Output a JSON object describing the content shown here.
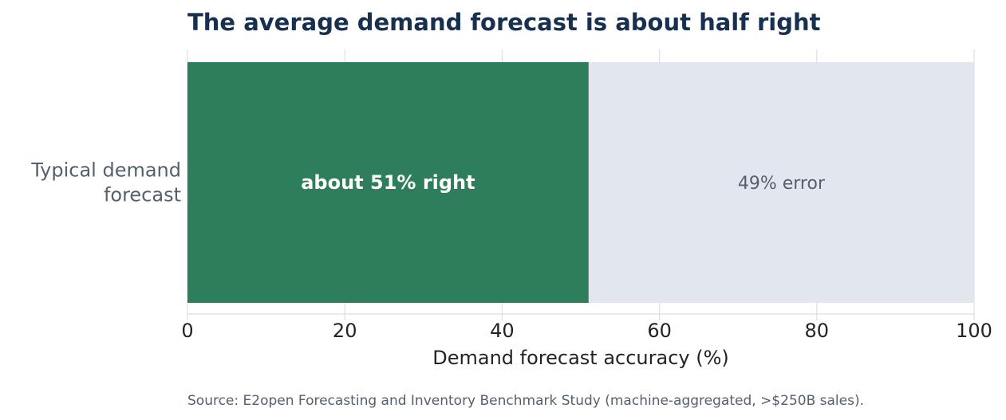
{
  "chart_data": {
    "type": "bar",
    "orientation": "horizontal",
    "stacked": true,
    "title": "The average demand forecast is about half right",
    "xlabel": "Demand forecast accuracy (%)",
    "ylabel": "",
    "categories": [
      "Typical demand\nforecast"
    ],
    "xlim": [
      0,
      100
    ],
    "xticks": [
      0,
      20,
      40,
      60,
      80,
      100
    ],
    "grid": "vertical gridlines on",
    "series": [
      {
        "values": [
          51
        ],
        "color": "#2e7d5b",
        "label": "about 51% right"
      },
      {
        "values": [
          49
        ],
        "color": "#e1e6ef",
        "label": "49% error"
      }
    ],
    "source": "Source: E2open Forecasting and Inventory Benchmark Study (machine-aggregated, >$250B sales)."
  },
  "colors": {
    "title": "#17304f",
    "right_label": "#ffffff",
    "error_label": "#555f6d",
    "source": "#555f6d",
    "grid": "#dcdfe3"
  }
}
